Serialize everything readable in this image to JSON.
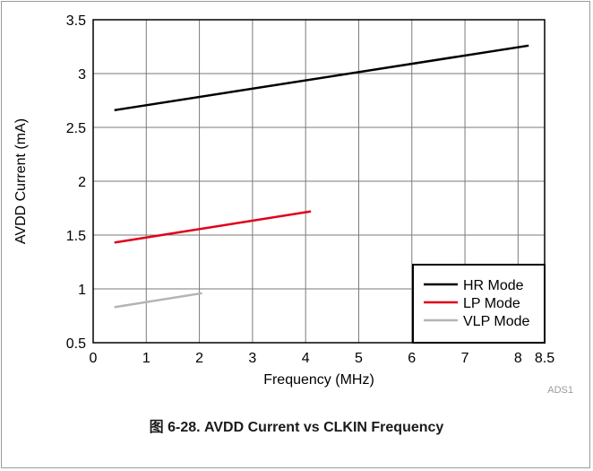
{
  "chart_data": {
    "type": "line",
    "xlabel": "Frequency (MHz)",
    "ylabel": "AVDD Current (mA)",
    "xlim": [
      0,
      8.5
    ],
    "ylim": [
      0.5,
      3.5
    ],
    "x_ticks": [
      "0",
      "1",
      "2",
      "3",
      "4",
      "5",
      "6",
      "7",
      "8",
      "8.5"
    ],
    "y_ticks": [
      "0.5",
      "1",
      "1.5",
      "2",
      "2.5",
      "3",
      "3.5"
    ],
    "grid": true,
    "legend_position": "bottom-right",
    "series": [
      {
        "name": "HR Mode",
        "color": "#000000",
        "x": [
          0.4,
          8.2
        ],
        "y": [
          2.66,
          3.26
        ]
      },
      {
        "name": "LP Mode",
        "color": "#e0001b",
        "x": [
          0.4,
          4.1
        ],
        "y": [
          1.43,
          1.72
        ]
      },
      {
        "name": "VLP Mode",
        "color": "#b4b4b4",
        "x": [
          0.4,
          2.05
        ],
        "y": [
          0.83,
          0.96
        ]
      }
    ],
    "annotation": "ADS1"
  },
  "caption": "图 6-28. AVDD Current vs CLKIN Frequency"
}
